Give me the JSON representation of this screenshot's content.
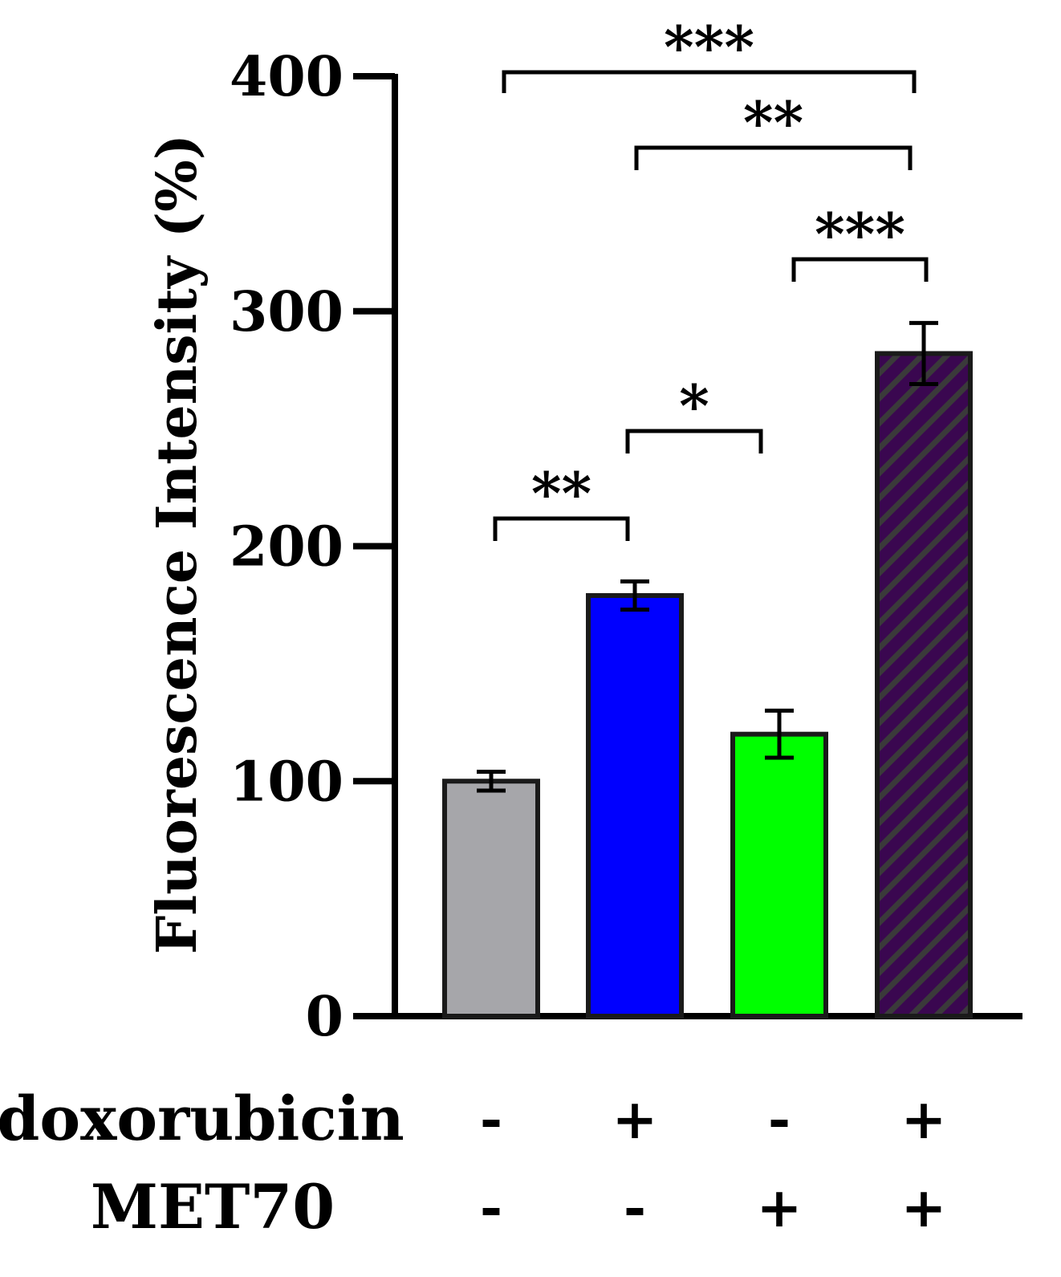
{
  "chart_data": {
    "type": "bar",
    "title": "",
    "xlabel": "",
    "ylabel": "Fluorescence Intensity (%)",
    "ylim": [
      0,
      400
    ],
    "yticks": [
      0,
      100,
      200,
      300,
      400
    ],
    "ytick_labels": [
      "0",
      "100",
      "200",
      "300",
      "400"
    ],
    "categories": [
      "-/-",
      "+/-",
      "-/+",
      "+/+"
    ],
    "values": [
      100,
      179,
      120,
      282
    ],
    "errors": [
      4,
      6,
      10,
      13
    ],
    "bar_colors": [
      "#A6A6AA",
      "#0000FF",
      "#00FF00",
      "#3A0750"
    ],
    "bar_hatch": [
      false,
      false,
      false,
      true
    ],
    "hatch_color": "#3A3A3A",
    "condition_rows": [
      {
        "label": "doxorubicin",
        "signs": [
          "-",
          "+",
          "-",
          "+"
        ]
      },
      {
        "label": "MET70",
        "signs": [
          "-",
          "-",
          "+",
          "+"
        ]
      }
    ],
    "significance": [
      {
        "from": 0,
        "to": 1,
        "label": "**"
      },
      {
        "from": 1,
        "to": 2,
        "label": "*"
      },
      {
        "from": 2,
        "to": 3,
        "label": "***"
      },
      {
        "from": 1,
        "to": 3,
        "label": "**"
      },
      {
        "from": 0,
        "to": 3,
        "label": "***"
      }
    ]
  }
}
